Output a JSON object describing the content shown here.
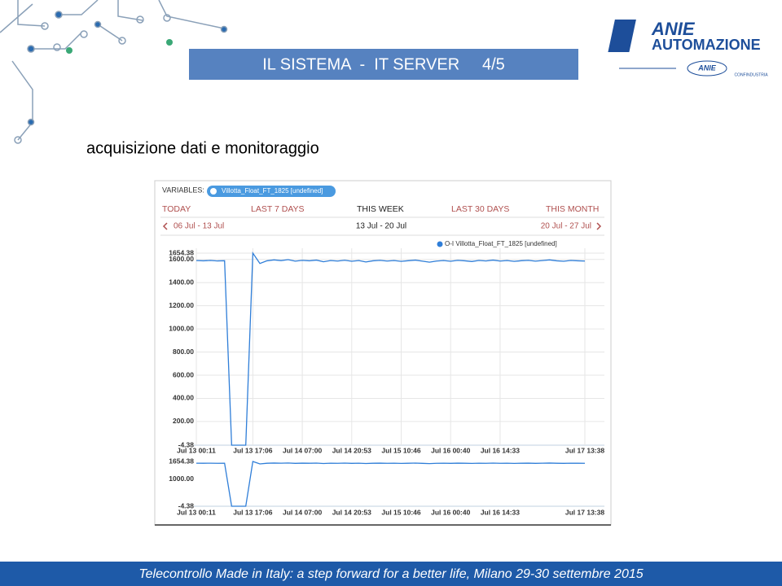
{
  "header": {
    "title": "IL SISTEMA  -  IT SERVER     4/5",
    "logo": "ANIE",
    "logo_sub": "AUTOMAZIONE",
    "logo_badge": "ANIE",
    "logo_org": "CONFINDUSTRIA"
  },
  "subtitle": "acquisizione dati e monitoraggio",
  "toolbar": {
    "variables_label": "VARIABLES:",
    "variable": "Villotta_Float_FT_1825 [undefined]",
    "ranges": [
      "TODAY",
      "LAST 7 DAYS",
      "THIS WEEK",
      "LAST 30 DAYS",
      "THIS MONTH"
    ],
    "prev": "06 Jul - 13 Jul",
    "current": "13 Jul - 20 Jul",
    "next": "20 Jul - 27 Jul"
  },
  "chart_data": [
    {
      "type": "line",
      "categories": [
        "Jul 13 00:11",
        null,
        null,
        null,
        null,
        null,
        null,
        null,
        "Jul 13 17:06",
        null,
        null,
        null,
        null,
        null,
        null,
        "Jul 14 07:00",
        null,
        null,
        null,
        null,
        null,
        null,
        "Jul 14 20:53",
        null,
        null,
        null,
        null,
        null,
        null,
        "Jul 15 10:46",
        null,
        null,
        null,
        null,
        null,
        null,
        "Jul 16 00:40",
        null,
        null,
        null,
        null,
        null,
        null,
        "Jul 16 14:33",
        null,
        null,
        null,
        null,
        null,
        null,
        null,
        null,
        null,
        null,
        null,
        "Jul 17 13:38"
      ],
      "series": [
        {
          "name": "O-I Villotta_Float_FT_1825 [undefined]",
          "color": "#2f7ed8",
          "values": [
            1590,
            1588,
            1591,
            1587,
            1589,
            -4.38,
            -4.38,
            -4.38,
            1654.38,
            1565,
            1588,
            1596,
            1590,
            1598,
            1585,
            1592,
            1588,
            1594,
            1580,
            1590,
            1586,
            1593,
            1584,
            1590,
            1578,
            1588,
            1592,
            1586,
            1590,
            1583,
            1589,
            1594,
            1585,
            1576,
            1586,
            1590,
            1584,
            1592,
            1588,
            1582,
            1591,
            1587,
            1594,
            1586,
            1590,
            1583,
            1589,
            1592,
            1585,
            1590,
            1596,
            1588,
            1584,
            1591,
            1588,
            1586
          ]
        }
      ],
      "ylim": [
        -4.38,
        1654.38
      ],
      "yticks": [
        -4.38,
        {
          "value": 200,
          "label": "200.00"
        },
        {
          "value": 400,
          "label": "400.00"
        },
        {
          "value": 600,
          "label": "600.00"
        },
        {
          "value": 800,
          "label": "800.00"
        },
        {
          "value": 1000,
          "label": "1000.00"
        },
        {
          "value": 1200,
          "label": "1200.00"
        },
        {
          "value": 1400,
          "label": "1400.00"
        },
        {
          "value": 1600,
          "label": "1600.00"
        },
        1654.38
      ],
      "grid": true
    },
    {
      "type": "line",
      "categories": [
        "Jul 13 00:11",
        null,
        null,
        null,
        null,
        null,
        null,
        null,
        "Jul 13 17:06",
        null,
        null,
        null,
        null,
        null,
        null,
        "Jul 14 07:00",
        null,
        null,
        null,
        null,
        null,
        null,
        "Jul 14 20:53",
        null,
        null,
        null,
        null,
        null,
        null,
        "Jul 15 10:46",
        null,
        null,
        null,
        null,
        null,
        null,
        "Jul 16 00:40",
        null,
        null,
        null,
        null,
        null,
        null,
        "Jul 16 14:33",
        null,
        null,
        null,
        null,
        null,
        null,
        null,
        null,
        null,
        null,
        null,
        "Jul 17 13:38"
      ],
      "color": "#2f7ed8",
      "values": [
        1590,
        1588,
        1591,
        1587,
        1589,
        -4.38,
        -4.38,
        -4.38,
        1654.38,
        1565,
        1588,
        1596,
        1590,
        1598,
        1585,
        1592,
        1588,
        1594,
        1580,
        1590,
        1586,
        1593,
        1584,
        1590,
        1578,
        1588,
        1592,
        1586,
        1590,
        1583,
        1589,
        1594,
        1585,
        1576,
        1586,
        1590,
        1584,
        1592,
        1588,
        1582,
        1591,
        1587,
        1594,
        1586,
        1590,
        1583,
        1589,
        1592,
        1585,
        1590,
        1596,
        1588,
        1584,
        1591,
        1588,
        1586
      ],
      "ylim": [
        -4.38,
        1654.38
      ],
      "yticks": [
        -4.38,
        {
          "value": 1000,
          "label": "1000.00"
        },
        1654.38
      ],
      "grid": false
    }
  ],
  "footer": "Telecontrollo Made in Italy: a step forward for a better life, Milano 29-30 settembre 2015"
}
